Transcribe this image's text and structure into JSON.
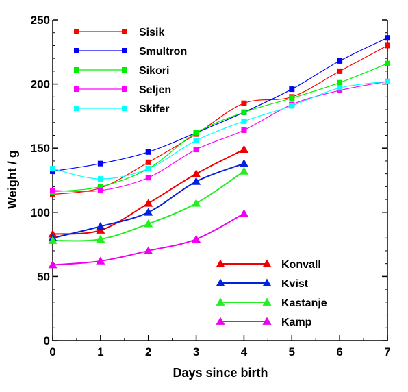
{
  "chart_data": {
    "type": "line",
    "title": "",
    "xlabel": "Days since birth",
    "ylabel": "Weight / g",
    "xlim": [
      0,
      7
    ],
    "ylim": [
      0,
      250
    ],
    "xticks": [
      0,
      1,
      2,
      3,
      4,
      5,
      6,
      7
    ],
    "yticks": [
      0,
      50,
      100,
      150,
      200,
      250
    ],
    "grid": false,
    "legends": [
      {
        "placement": "top-left",
        "series": [
          "Sisik",
          "Smultron",
          "Sikori",
          "Seljen",
          "Skifer"
        ]
      },
      {
        "placement": "bottom-right",
        "series": [
          "Konvall",
          "Kvist",
          "Kastanje",
          "Kamp"
        ]
      }
    ],
    "series": [
      {
        "name": "Sisik",
        "color": "#ff0000",
        "marker": "square",
        "x": [
          0,
          1,
          2,
          3,
          4,
          5,
          6,
          7
        ],
        "y": [
          114,
          119,
          139,
          161,
          185,
          190,
          210,
          230
        ]
      },
      {
        "name": "Smultron",
        "color": "#0000ff",
        "marker": "square",
        "x": [
          0,
          1,
          2,
          3,
          4,
          5,
          6,
          7
        ],
        "y": [
          132,
          138,
          147,
          162,
          178,
          196,
          218,
          236
        ]
      },
      {
        "name": "Sikori",
        "color": "#00ee00",
        "marker": "square",
        "x": [
          0,
          1,
          2,
          3,
          4,
          5,
          6,
          7
        ],
        "y": [
          116,
          120,
          134,
          162,
          178,
          189,
          201,
          216
        ]
      },
      {
        "name": "Seljen",
        "color": "#ff00ff",
        "marker": "square",
        "x": [
          0,
          1,
          2,
          3,
          4,
          5,
          6,
          7
        ],
        "y": [
          117,
          117,
          127,
          149,
          164,
          184,
          195,
          202
        ]
      },
      {
        "name": "Skifer",
        "color": "#00ffff",
        "marker": "square",
        "x": [
          0,
          1,
          2,
          3,
          4,
          5,
          6,
          7
        ],
        "y": [
          134,
          126,
          134,
          156,
          171,
          183,
          197,
          202
        ]
      },
      {
        "name": "Konvall",
        "color": "#ee0000",
        "marker": "triangle",
        "x": [
          0,
          1,
          2,
          3,
          4
        ],
        "y": [
          83,
          86,
          107,
          130,
          149
        ]
      },
      {
        "name": "Kvist",
        "color": "#0022dd",
        "marker": "triangle",
        "x": [
          0,
          1,
          2,
          3,
          4
        ],
        "y": [
          80,
          89,
          100,
          124,
          138
        ]
      },
      {
        "name": "Kastanje",
        "color": "#22ee22",
        "marker": "triangle",
        "x": [
          0,
          1,
          2,
          3,
          4
        ],
        "y": [
          78,
          79,
          91,
          107,
          132
        ]
      },
      {
        "name": "Kamp",
        "color": "#ee00ee",
        "marker": "triangle",
        "x": [
          0,
          1,
          2,
          3,
          4
        ],
        "y": [
          59,
          62,
          70,
          79,
          99
        ]
      }
    ]
  }
}
